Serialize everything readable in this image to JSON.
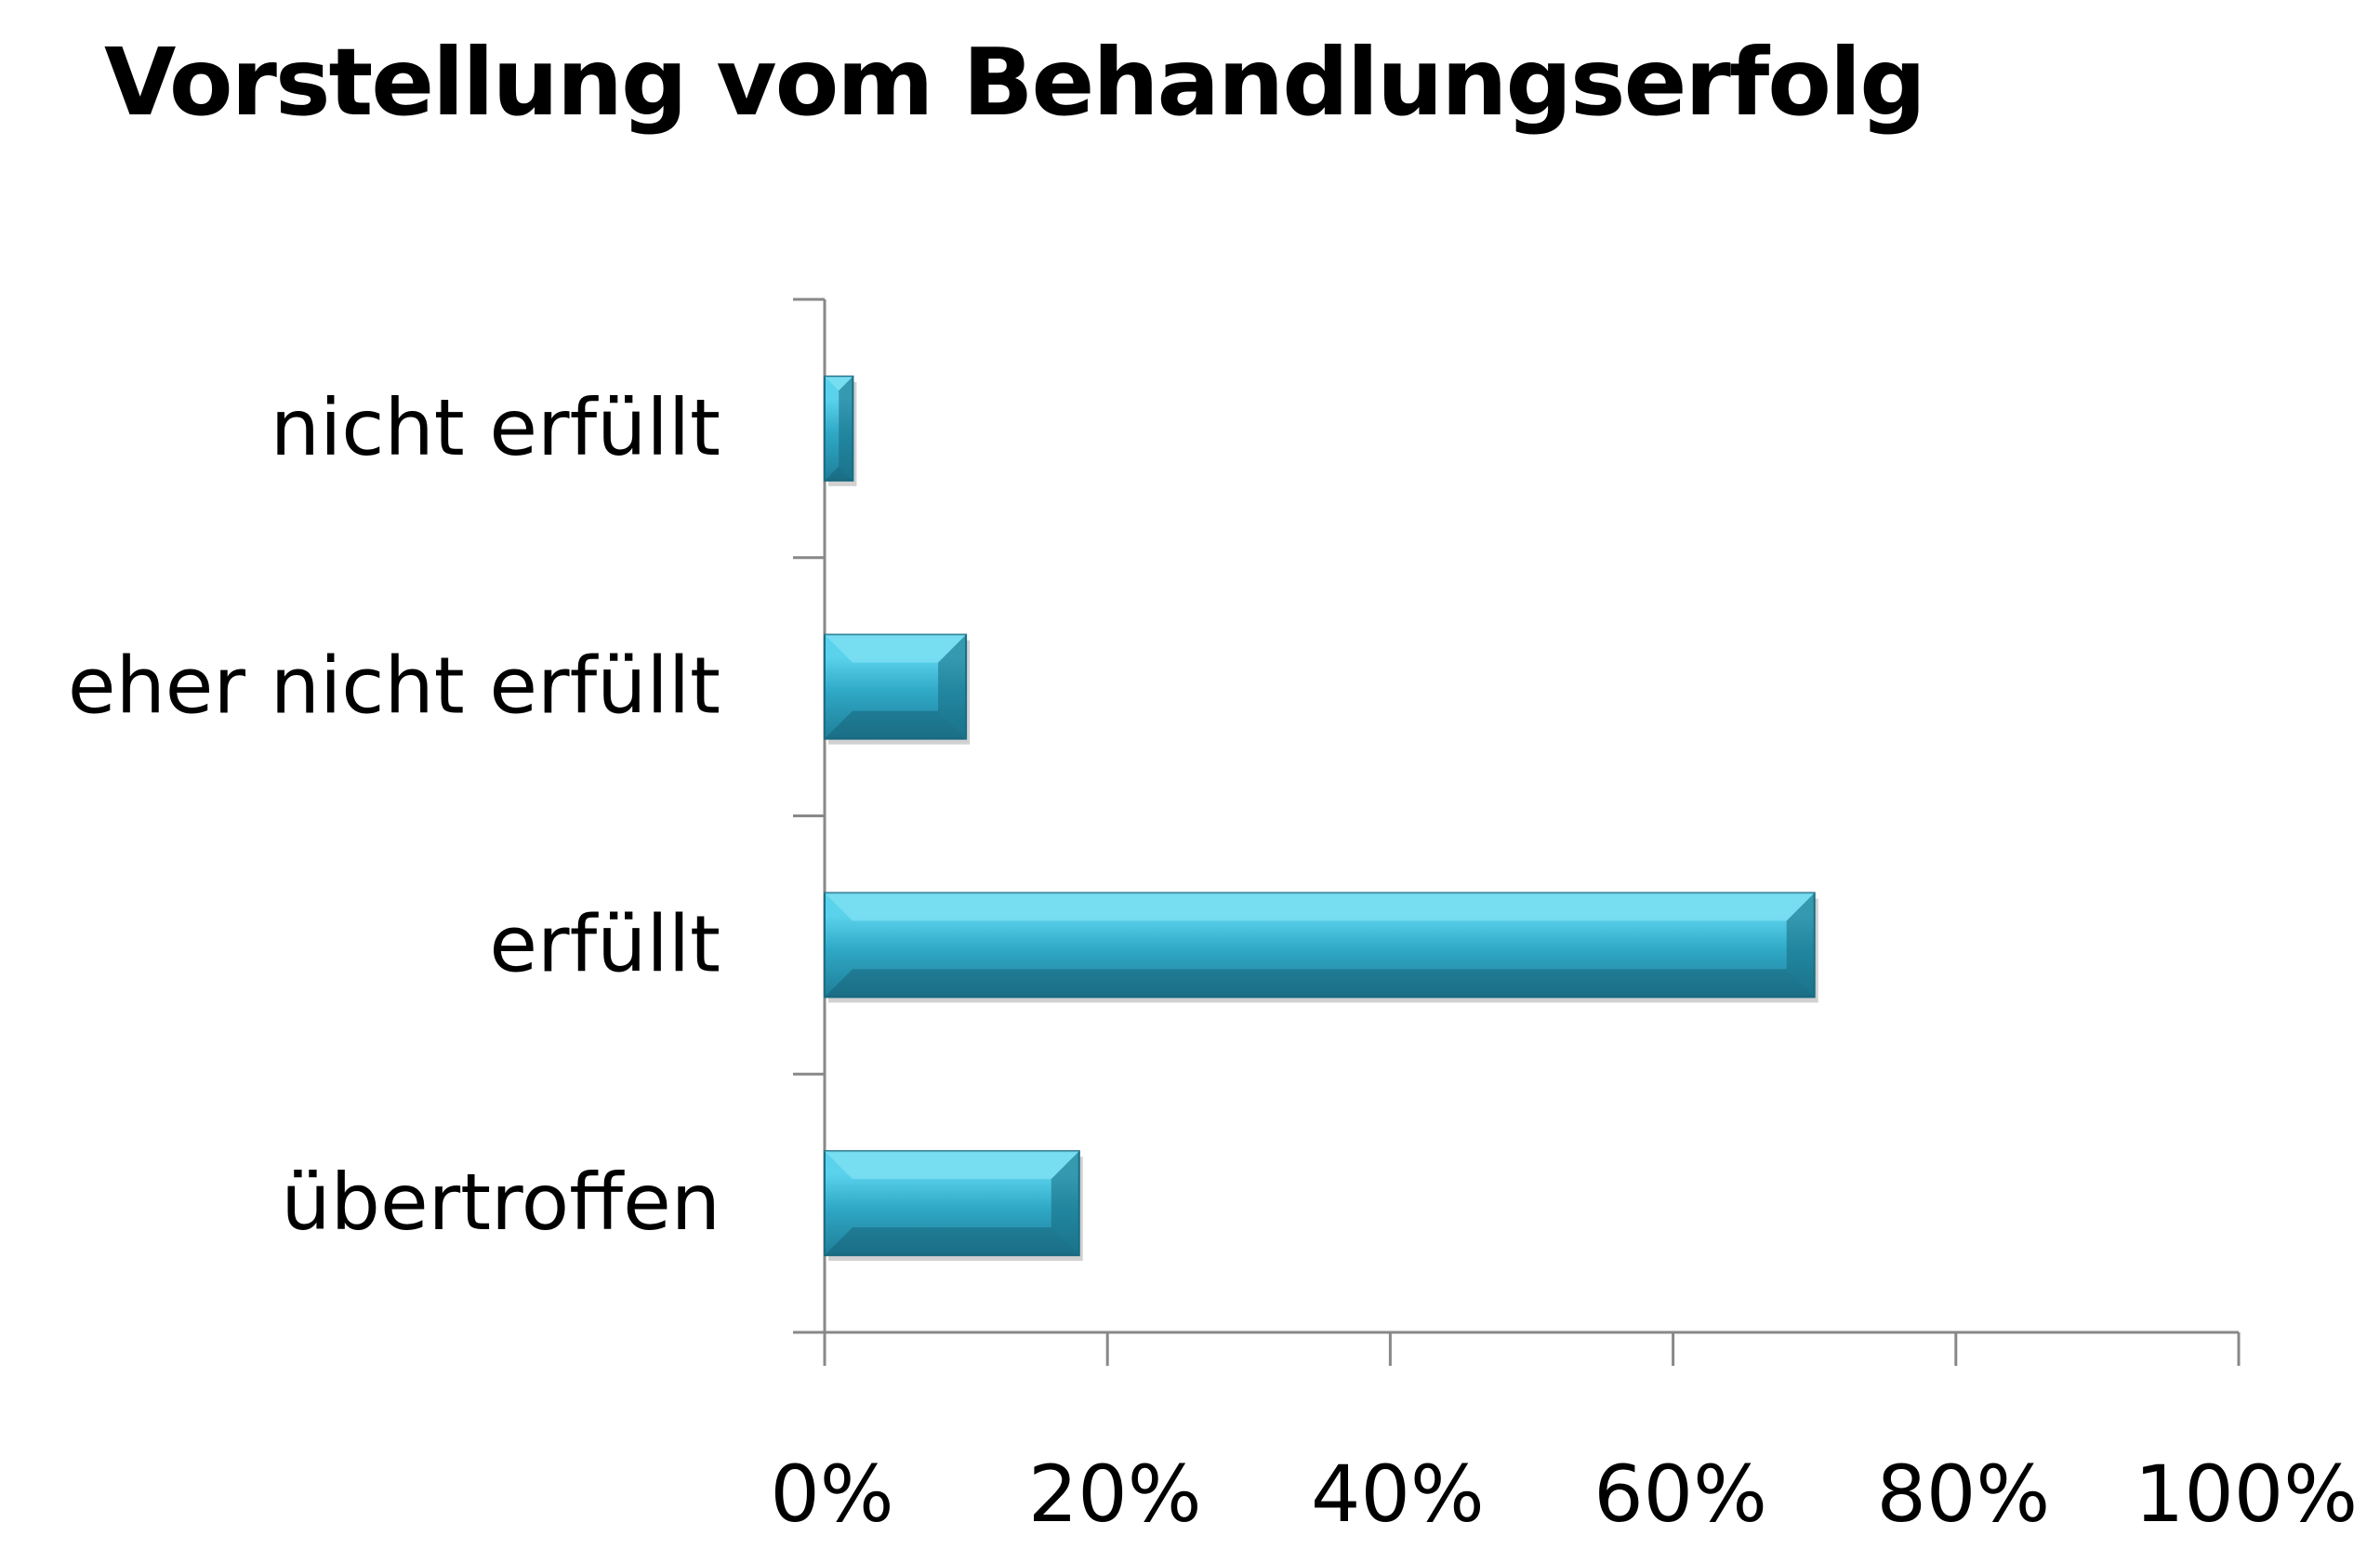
{
  "chart_data": {
    "type": "bar",
    "orientation": "horizontal",
    "title": "Vorstellung vom Behandlungserfolg",
    "categories": [
      "nicht erfüllt",
      "eher nicht erfüllt",
      "erfüllt",
      "übertroffen"
    ],
    "values": [
      2,
      10,
      70,
      18
    ],
    "unit": "%",
    "xlim": [
      0,
      100
    ],
    "xticks": [
      "0%",
      "20%",
      "40%",
      "60%",
      "80%",
      "100%"
    ],
    "xlabel": "",
    "ylabel": "",
    "grid": false,
    "legend": "none",
    "bar_color": "#2fa8c6",
    "bar_color_light": "#5ad2ec",
    "bar_color_dark": "#1f7e98"
  }
}
